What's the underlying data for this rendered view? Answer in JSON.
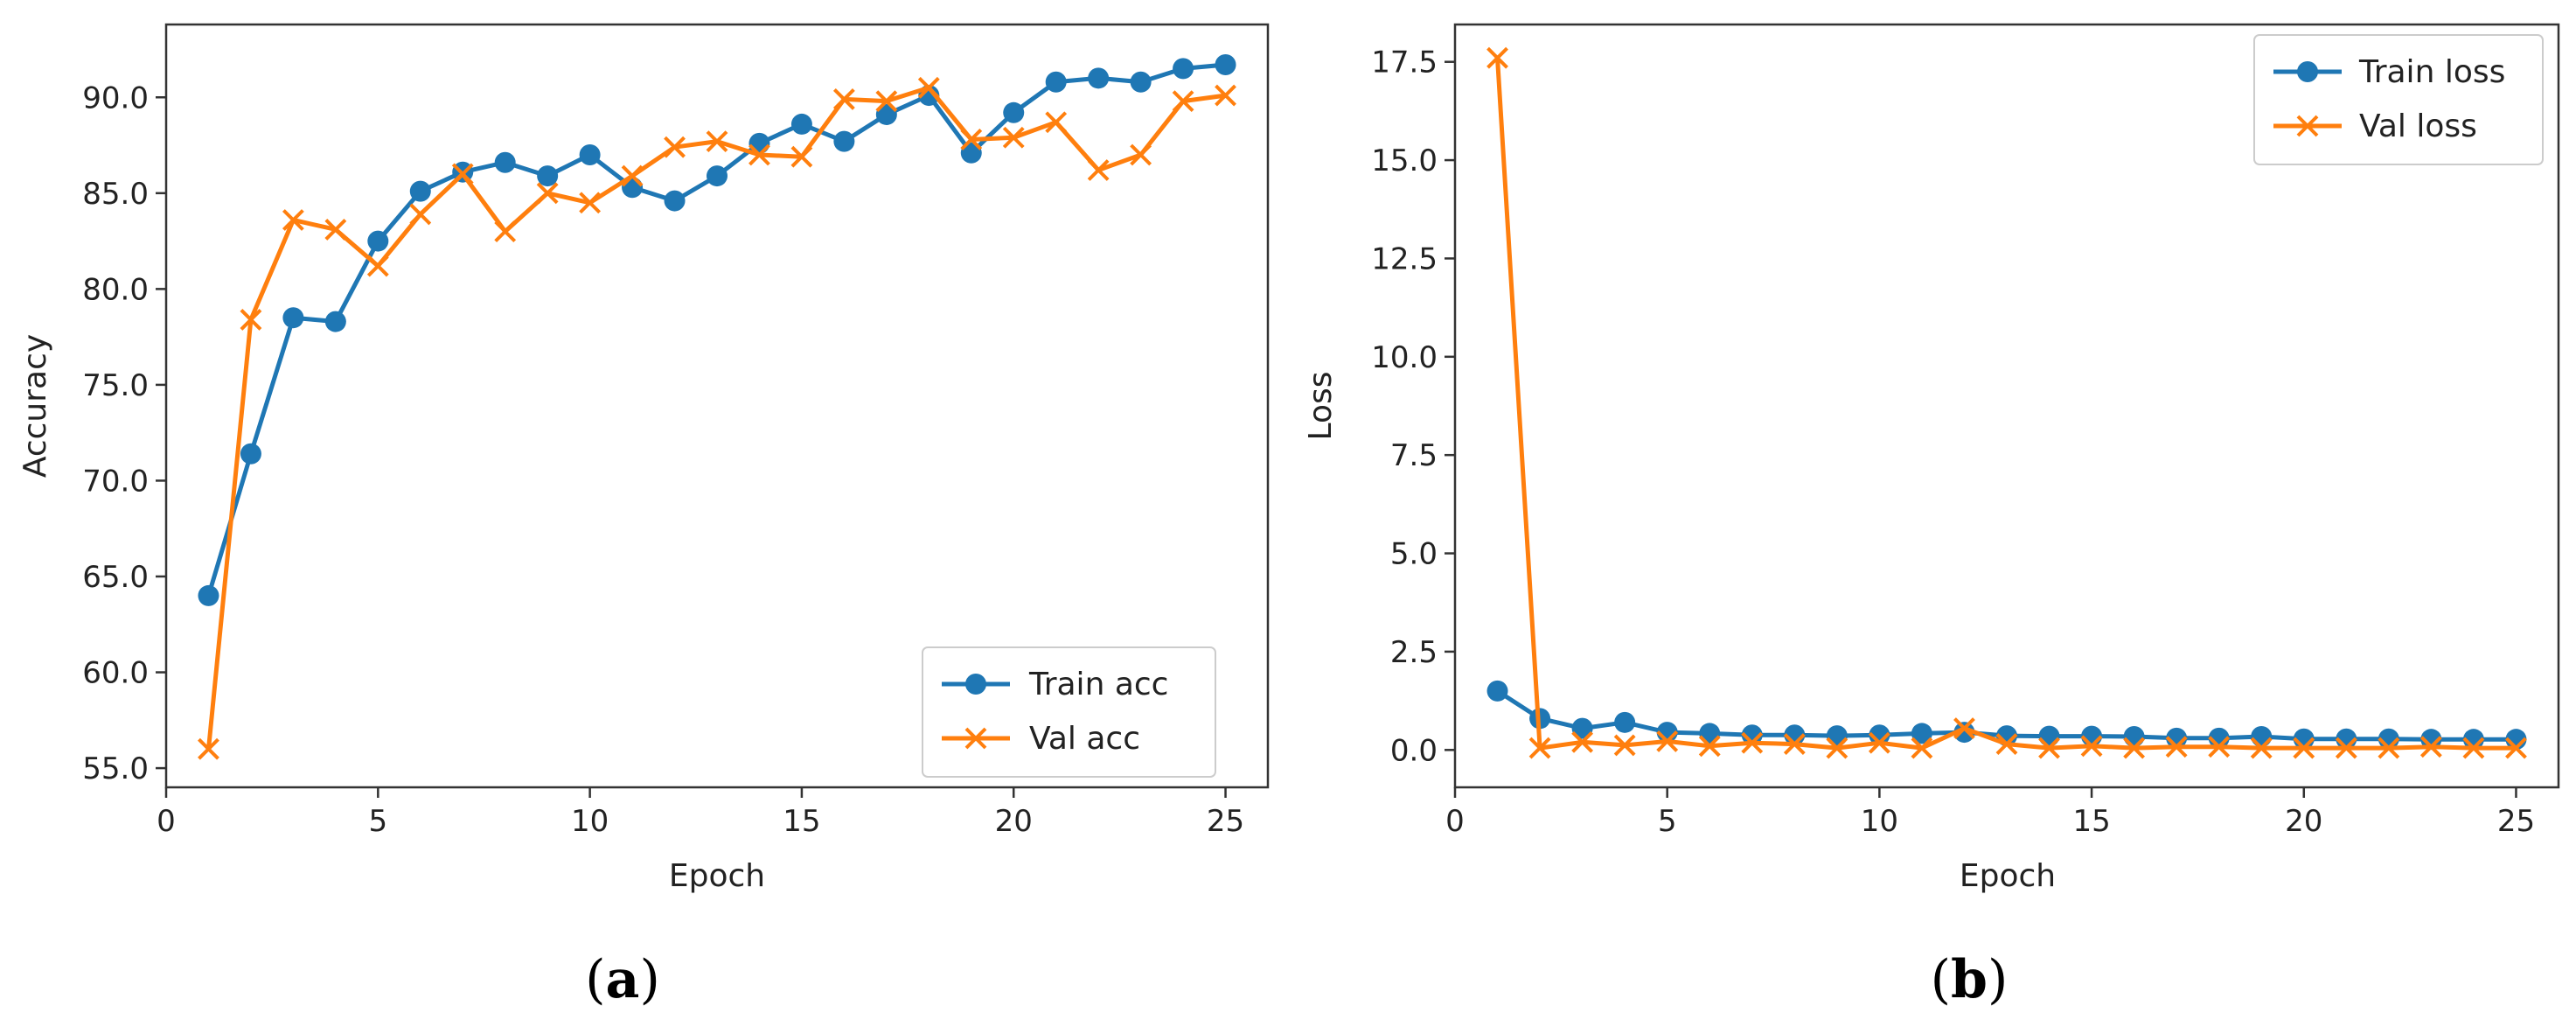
{
  "colors": {
    "train": "#1f77b4",
    "val": "#ff7f0e"
  },
  "chart_data": [
    {
      "type": "line",
      "title": "",
      "panel_label_open": "(",
      "panel_label_letter": "a",
      "panel_label_close": ")",
      "xlabel": "Epoch",
      "ylabel": "Accuracy",
      "xlim": [
        0,
        26
      ],
      "ylim": [
        54.0,
        93.8
      ],
      "xticks": [
        0,
        5,
        10,
        15,
        20,
        25
      ],
      "xtick_labels": [
        "0",
        "5",
        "10",
        "15",
        "20",
        "25"
      ],
      "yticks": [
        55,
        60,
        65,
        70,
        75,
        80,
        85,
        90
      ],
      "ytick_labels": [
        "55.0",
        "60.0",
        "65.0",
        "70.0",
        "75.0",
        "80.0",
        "85.0",
        "90.0"
      ],
      "legend_position": "lower-right",
      "x": [
        1,
        2,
        3,
        4,
        5,
        6,
        7,
        8,
        9,
        10,
        11,
        12,
        13,
        14,
        15,
        16,
        17,
        18,
        19,
        20,
        21,
        22,
        23,
        24,
        25
      ],
      "series": [
        {
          "name": "Train acc",
          "marker": "circle",
          "color_key": "train",
          "values": [
            64.0,
            71.4,
            78.5,
            78.3,
            82.5,
            85.1,
            86.1,
            86.6,
            85.9,
            87.0,
            85.3,
            84.6,
            85.9,
            87.6,
            88.6,
            87.7,
            89.1,
            90.1,
            87.1,
            89.2,
            90.8,
            91.0,
            90.8,
            91.5,
            91.7
          ]
        },
        {
          "name": "Val acc",
          "marker": "x",
          "color_key": "val",
          "values": [
            56.0,
            78.4,
            83.6,
            83.1,
            81.2,
            83.9,
            86.0,
            83.0,
            85.0,
            84.5,
            85.9,
            87.4,
            87.7,
            87.0,
            86.9,
            89.9,
            89.8,
            90.5,
            87.8,
            87.9,
            88.7,
            86.2,
            87.0,
            89.8,
            90.1
          ]
        }
      ]
    },
    {
      "type": "line",
      "title": "",
      "panel_label_open": "(",
      "panel_label_letter": "b",
      "panel_label_close": ")",
      "xlabel": "Epoch",
      "ylabel": "Loss",
      "xlim": [
        0,
        26
      ],
      "ylim": [
        -0.95,
        18.45
      ],
      "xticks": [
        0,
        5,
        10,
        15,
        20,
        25
      ],
      "xtick_labels": [
        "0",
        "5",
        "10",
        "15",
        "20",
        "25"
      ],
      "yticks": [
        0.0,
        2.5,
        5.0,
        7.5,
        10.0,
        12.5,
        15.0,
        17.5
      ],
      "ytick_labels": [
        "0.0",
        "2.5",
        "5.0",
        "7.5",
        "10.0",
        "12.5",
        "15.0",
        "17.5"
      ],
      "legend_position": "upper-right",
      "x": [
        1,
        2,
        3,
        4,
        5,
        6,
        7,
        8,
        9,
        10,
        11,
        12,
        13,
        14,
        15,
        16,
        17,
        18,
        19,
        20,
        21,
        22,
        23,
        24,
        25
      ],
      "series": [
        {
          "name": "Train loss",
          "marker": "circle",
          "color_key": "train",
          "values": [
            1.5,
            0.8,
            0.55,
            0.7,
            0.45,
            0.42,
            0.38,
            0.38,
            0.36,
            0.38,
            0.42,
            0.45,
            0.36,
            0.35,
            0.35,
            0.34,
            0.3,
            0.3,
            0.34,
            0.28,
            0.28,
            0.28,
            0.27,
            0.27,
            0.27
          ]
        },
        {
          "name": "Val loss",
          "marker": "x",
          "color_key": "val",
          "values": [
            17.6,
            0.05,
            0.2,
            0.12,
            0.22,
            0.1,
            0.18,
            0.15,
            0.05,
            0.18,
            0.05,
            0.55,
            0.15,
            0.05,
            0.1,
            0.05,
            0.08,
            0.08,
            0.05,
            0.05,
            0.05,
            0.05,
            0.08,
            0.05,
            0.05
          ]
        }
      ]
    }
  ]
}
